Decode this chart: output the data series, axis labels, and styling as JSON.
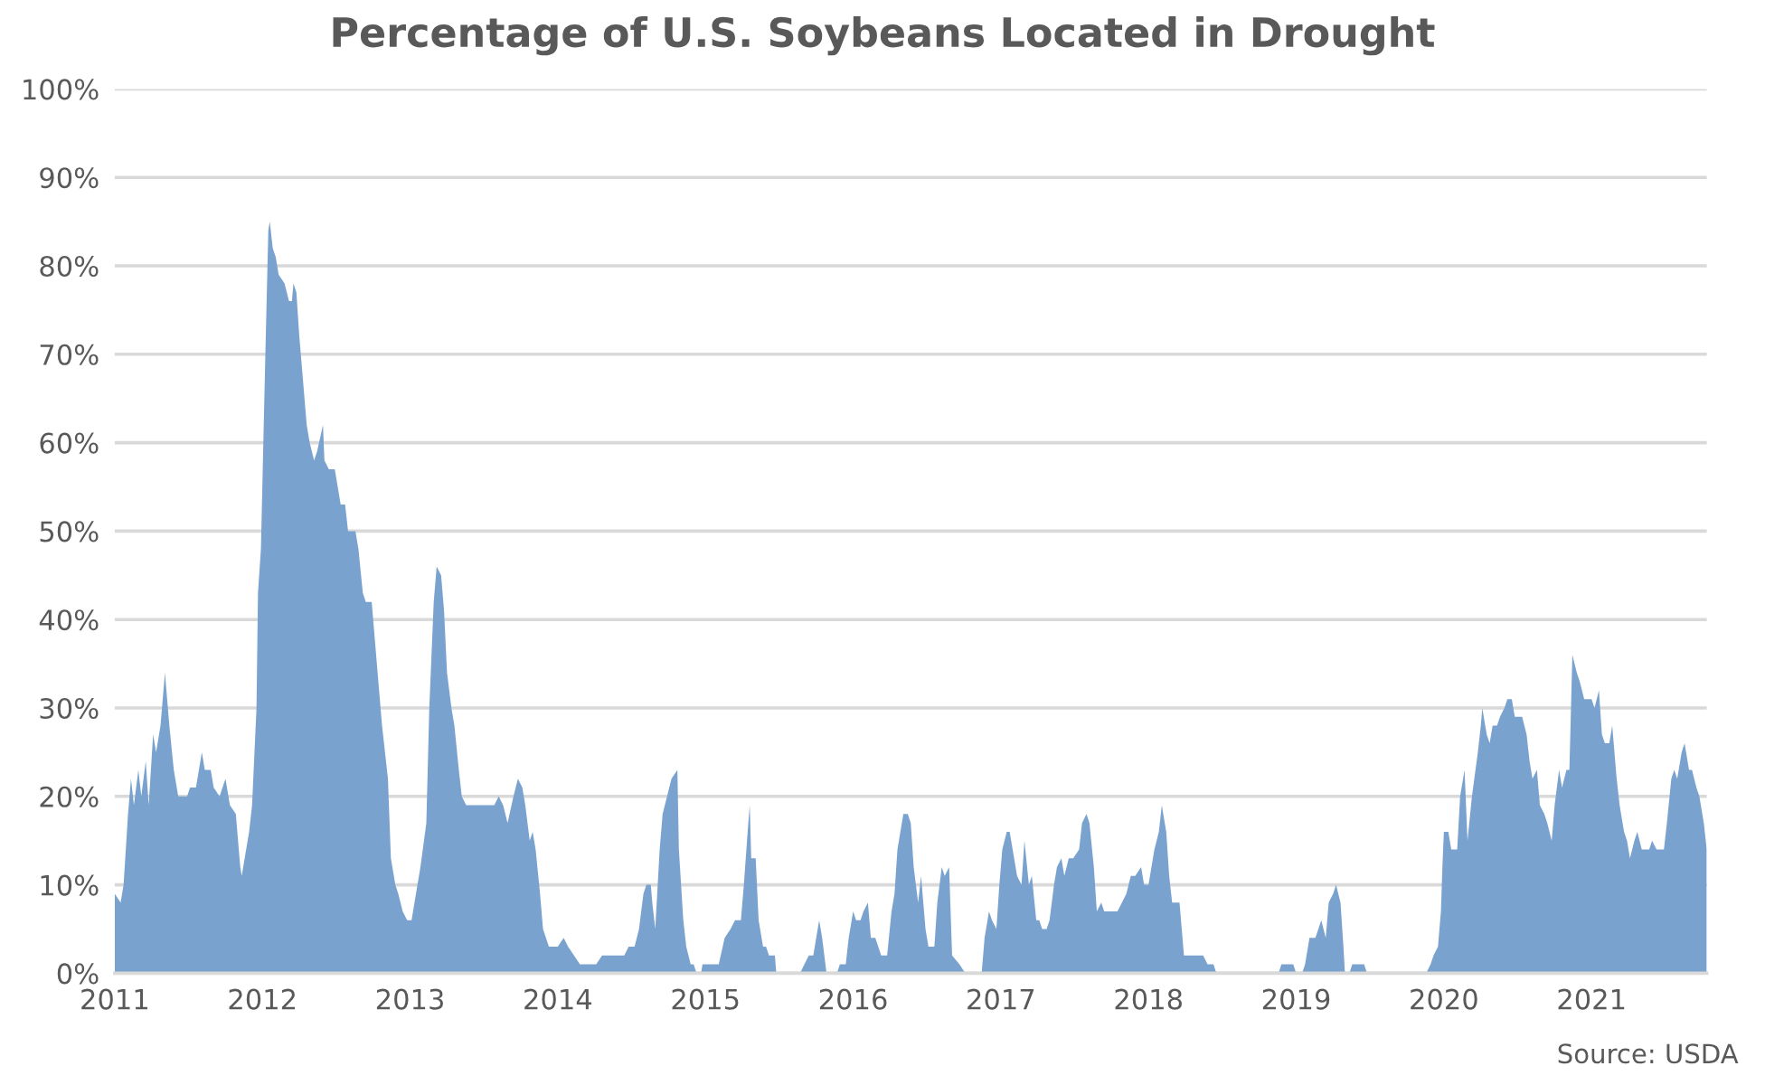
{
  "chart_data": {
    "type": "area",
    "title": "Percentage of U.S. Soybeans Located in Drought",
    "annotations": [
      "Source: USDA"
    ],
    "x": [
      2011.0,
      2011.04,
      2011.06,
      2011.09,
      2011.11,
      2011.13,
      2011.16,
      2011.18,
      2011.21,
      2011.23,
      2011.26,
      2011.28,
      2011.31,
      2011.34,
      2011.37,
      2011.4,
      2011.43,
      2011.49,
      2011.51,
      2011.55,
      2011.58,
      2011.59,
      2011.61,
      2011.65,
      2011.67,
      2011.71,
      2011.75,
      2011.78,
      2011.82,
      2011.85,
      2011.86,
      2011.88,
      2011.91,
      2011.93,
      2011.96,
      2011.97,
      2011.99,
      2012.02,
      2012.04,
      2012.05,
      2012.07,
      2012.09,
      2012.11,
      2012.15,
      2012.18,
      2012.2,
      2012.21,
      2012.23,
      2012.25,
      2012.27,
      2012.3,
      2012.32,
      2012.35,
      2012.37,
      2012.41,
      2012.42,
      2012.45,
      2012.49,
      2012.53,
      2012.56,
      2012.58,
      2012.63,
      2012.65,
      2012.68,
      2012.7,
      2012.74,
      2012.78,
      2012.81,
      2012.85,
      2012.87,
      2012.9,
      2012.92,
      2012.95,
      2012.98,
      2013.01,
      2013.05,
      2013.07,
      2013.11,
      2013.13,
      2013.16,
      2013.18,
      2013.21,
      2013.23,
      2013.25,
      2013.28,
      2013.3,
      2013.33,
      2013.35,
      2013.38,
      2013.57,
      2013.6,
      2013.63,
      2013.66,
      2013.7,
      2013.73,
      2013.76,
      2013.78,
      2013.81,
      2013.83,
      2013.85,
      2013.88,
      2013.9,
      2013.94,
      2014.0,
      2014.04,
      2014.07,
      2014.11,
      2014.15,
      2014.26,
      2014.3,
      2014.45,
      2014.48,
      2014.52,
      2014.55,
      2014.58,
      2014.6,
      2014.63,
      2014.64,
      2014.66,
      2014.69,
      2014.71,
      2014.74,
      2014.77,
      2014.81,
      2014.82,
      2014.85,
      2014.87,
      2014.9,
      2014.92,
      2014.94,
      2014.97,
      2014.98,
      2015.09,
      2015.13,
      2015.17,
      2015.2,
      2015.24,
      2015.26,
      2015.29,
      2015.3,
      2015.31,
      2015.34,
      2015.36,
      2015.39,
      2015.41,
      2015.43,
      2015.47,
      2015.48,
      2015.64,
      2015.67,
      2015.7,
      2015.73,
      2015.77,
      2015.79,
      2015.82,
      2015.89,
      2015.91,
      2015.95,
      2015.97,
      2016.0,
      2016.02,
      2016.05,
      2016.07,
      2016.1,
      2016.12,
      2016.15,
      2016.17,
      2016.19,
      2016.23,
      2016.26,
      2016.28,
      2016.3,
      2016.34,
      2016.37,
      2016.39,
      2016.41,
      2016.44,
      2016.46,
      2016.49,
      2016.51,
      2016.55,
      2016.57,
      2016.6,
      2016.62,
      2016.65,
      2016.67,
      2016.72,
      2016.76,
      2016.87,
      2016.89,
      2016.92,
      2016.94,
      2016.97,
      2016.99,
      2017.01,
      2017.04,
      2017.06,
      2017.09,
      2017.11,
      2017.14,
      2017.16,
      2017.19,
      2017.21,
      2017.24,
      2017.26,
      2017.28,
      2017.31,
      2017.33,
      2017.36,
      2017.38,
      2017.41,
      2017.43,
      2017.46,
      2017.49,
      2017.53,
      2017.55,
      2017.58,
      2017.6,
      2017.63,
      2017.65,
      2017.68,
      2017.7,
      2017.79,
      2017.82,
      2017.85,
      2017.88,
      2017.91,
      2017.95,
      2017.97,
      2018.0,
      2018.02,
      2018.04,
      2018.07,
      2018.09,
      2018.12,
      2018.14,
      2018.16,
      2018.21,
      2018.24,
      2018.37,
      2018.4,
      2018.44,
      2018.46,
      2018.88,
      2018.9,
      2018.98,
      2019.0,
      2019.04,
      2019.06,
      2019.09,
      2019.13,
      2019.17,
      2019.2,
      2019.22,
      2019.25,
      2019.27,
      2019.3,
      2019.32,
      2019.33,
      2019.36,
      2019.38,
      2019.46,
      2019.48,
      2019.88,
      2019.91,
      2019.93,
      2019.96,
      2019.98,
      2019.99,
      2020.0,
      2020.03,
      2020.05,
      2020.09,
      2020.11,
      2020.14,
      2020.16,
      2020.19,
      2020.23,
      2020.25,
      2020.26,
      2020.29,
      2020.31,
      2020.33,
      2020.36,
      2020.38,
      2020.41,
      2020.43,
      2020.46,
      2020.48,
      2020.53,
      2020.56,
      2020.58,
      2020.6,
      2020.63,
      2020.65,
      2020.68,
      2020.7,
      2020.73,
      2020.75,
      2020.78,
      2020.8,
      2020.83,
      2020.85,
      2020.87,
      2020.9,
      2020.92,
      2020.95,
      2021.0,
      2021.02,
      2021.05,
      2021.07,
      2021.09,
      2021.12,
      2021.14,
      2021.17,
      2021.19,
      2021.22,
      2021.24,
      2021.26,
      2021.29,
      2021.31,
      2021.34,
      2021.39,
      2021.41,
      2021.44,
      2021.49,
      2021.51,
      2021.54,
      2021.56,
      2021.58,
      2021.61,
      2021.63,
      2021.66,
      2021.68,
      2021.71,
      2021.73,
      2021.76,
      2021.78
    ],
    "series": [
      {
        "color": "#7aa2cf",
        "values": [
          9,
          8,
          10,
          18,
          22,
          19,
          23,
          20,
          24,
          19,
          27,
          25,
          28,
          34,
          28,
          23,
          20,
          20,
          21,
          21,
          24,
          25,
          23,
          23,
          21,
          20,
          22,
          19,
          18,
          12,
          11,
          13,
          16,
          19,
          30,
          43,
          48,
          70,
          84,
          85,
          82,
          81,
          79,
          78,
          76,
          76,
          78,
          77,
          72,
          68,
          62,
          60,
          58,
          59,
          62,
          58,
          57,
          57,
          53,
          53,
          50,
          50,
          48,
          43,
          42,
          42,
          34,
          28,
          22,
          13,
          10,
          9,
          7,
          6,
          6,
          10,
          12,
          17,
          30,
          42,
          46,
          45,
          41,
          34,
          30,
          28,
          23,
          20,
          19,
          19,
          20,
          19,
          17,
          20,
          22,
          21,
          19,
          15,
          16,
          14,
          9,
          5,
          3,
          3,
          4,
          3,
          2,
          1,
          1,
          2,
          2,
          3,
          3,
          5,
          9,
          10,
          10,
          8,
          5,
          14,
          18,
          20,
          22,
          23,
          14,
          6,
          3,
          1,
          1,
          0,
          0,
          1,
          1,
          4,
          5,
          6,
          6,
          10,
          17,
          19,
          13,
          13,
          6,
          3,
          3,
          2,
          2,
          0,
          0,
          1,
          2,
          2,
          6,
          4,
          0,
          0,
          1,
          1,
          4,
          7,
          6,
          6,
          7,
          8,
          4,
          4,
          3,
          2,
          2,
          7,
          9,
          14,
          18,
          18,
          17,
          12,
          8,
          11,
          5,
          3,
          3,
          8,
          12,
          11,
          12,
          2,
          1,
          0,
          0,
          4,
          7,
          6,
          5,
          10,
          14,
          16,
          16,
          13,
          11,
          10,
          15,
          10,
          11,
          6,
          6,
          5,
          5,
          6,
          10,
          12,
          13,
          11,
          13,
          13,
          14,
          17,
          18,
          17,
          12,
          7,
          8,
          7,
          7,
          8,
          9,
          11,
          11,
          12,
          10,
          10,
          12,
          14,
          16,
          19,
          16,
          11,
          8,
          8,
          2,
          2,
          1,
          1,
          0,
          0,
          1,
          1,
          0,
          0,
          1,
          4,
          4,
          6,
          4,
          8,
          9,
          10,
          8,
          3,
          0,
          0,
          1,
          1,
          0,
          0,
          1,
          2,
          3,
          7,
          12,
          16,
          16,
          14,
          14,
          20,
          23,
          15,
          20,
          25,
          28,
          30,
          27,
          26,
          28,
          28,
          29,
          30,
          31,
          31,
          29,
          29,
          27,
          24,
          22,
          23,
          19,
          18,
          17,
          15,
          19,
          23,
          21,
          23,
          23,
          36,
          34,
          33,
          31,
          31,
          30,
          32,
          27,
          26,
          26,
          28,
          22,
          19,
          16,
          15,
          13,
          15,
          16,
          14,
          14,
          15,
          14,
          14,
          17,
          22,
          23,
          22,
          25,
          26,
          23,
          23,
          21,
          20,
          17,
          14
        ]
      }
    ],
    "xlim": [
      2011,
      2021.78
    ],
    "xticks": [
      2011,
      2012,
      2013,
      2014,
      2015,
      2016,
      2017,
      2018,
      2019,
      2020,
      2021
    ],
    "ylim": [
      0,
      100
    ],
    "yticks": [
      {
        "value": 0,
        "label": "0%"
      },
      {
        "value": 10,
        "label": "10%"
      },
      {
        "value": 20,
        "label": "20%"
      },
      {
        "value": 30,
        "label": "30%"
      },
      {
        "value": 40,
        "label": "40%"
      },
      {
        "value": 50,
        "label": "50%"
      },
      {
        "value": 60,
        "label": "60%"
      },
      {
        "value": 70,
        "label": "70%"
      },
      {
        "value": 80,
        "label": "80%"
      },
      {
        "value": 90,
        "label": "90%"
      },
      {
        "value": 100,
        "label": "100%"
      }
    ],
    "grid": "y",
    "legend": false
  }
}
